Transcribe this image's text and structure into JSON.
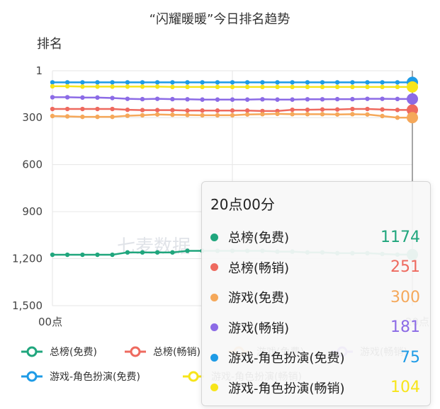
{
  "chart_data": {
    "type": "line",
    "title": "“闪耀暖暖”今日排名趋势",
    "ylabel": "排名",
    "y_reversed": true,
    "ylim": [
      1,
      1500
    ],
    "yticks": [
      1,
      300,
      600,
      900,
      1200,
      1500
    ],
    "ytick_labels": [
      "1",
      "300",
      "600",
      "900",
      "1,200",
      "1,500"
    ],
    "xlim": [
      0,
      20
    ],
    "xtick_labels": [
      "00点",
      "20点"
    ],
    "grid": true,
    "watermark": "七麦数据",
    "x": [
      0,
      0.83,
      1.67,
      2.5,
      3.33,
      4.17,
      5,
      5.83,
      6.67,
      7.5,
      8.33,
      9.17,
      10,
      10.83,
      11.67,
      12.5,
      13.33,
      14.17,
      15,
      15.83,
      16.67,
      17.5,
      18.33,
      19.17,
      20
    ],
    "series": [
      {
        "name": "总榜(免费)",
        "color": "#20a67d",
        "values": [
          1175,
          1175,
          1175,
          1175,
          1175,
          1160,
          1160,
          1160,
          1160,
          1150,
          1150,
          1150,
          1150,
          1150,
          1150,
          1155,
          1155,
          1160,
          1160,
          1165,
          1165,
          1165,
          1170,
          1174,
          1174
        ]
      },
      {
        "name": "总榜(畅销)",
        "color": "#ee6a5f",
        "values": [
          245,
          245,
          245,
          245,
          245,
          250,
          252,
          252,
          252,
          255,
          255,
          255,
          255,
          255,
          258,
          258,
          250,
          250,
          248,
          248,
          245,
          245,
          248,
          251,
          251
        ]
      },
      {
        "name": "游戏(免费)",
        "color": "#f5a85a",
        "values": [
          290,
          292,
          295,
          295,
          295,
          288,
          285,
          280,
          282,
          283,
          285,
          285,
          285,
          280,
          278,
          276,
          278,
          278,
          278,
          280,
          278,
          280,
          290,
          300,
          300
        ]
      },
      {
        "name": "游戏(畅销)",
        "color": "#8c6be6",
        "values": [
          170,
          170,
          172,
          172,
          175,
          180,
          182,
          180,
          182,
          183,
          185,
          185,
          185,
          185,
          183,
          185,
          185,
          183,
          183,
          182,
          182,
          180,
          180,
          181,
          181
        ]
      },
      {
        "name": "游戏-角色扮演(免费)",
        "color": "#1e9be6",
        "values": [
          75,
          75,
          75,
          75,
          75,
          75,
          75,
          75,
          75,
          75,
          75,
          75,
          75,
          75,
          75,
          75,
          75,
          75,
          75,
          75,
          75,
          75,
          75,
          75,
          75
        ]
      },
      {
        "name": "游戏-角色扮演(畅销)",
        "color": "#f7e51a",
        "values": [
          100,
          100,
          102,
          102,
          102,
          102,
          102,
          102,
          104,
          104,
          104,
          104,
          104,
          104,
          104,
          104,
          104,
          104,
          104,
          104,
          104,
          104,
          104,
          104,
          104
        ]
      }
    ],
    "legend": {
      "placement": "bottom",
      "items": [
        "总榜(免费)",
        "总榜(畅销)",
        "游戏(免费)",
        "游戏(畅销)",
        "游戏-角色扮演(免费)",
        "游戏-角色扮演(畅销)"
      ]
    }
  },
  "tooltip": {
    "title": "20点00分",
    "rows": [
      {
        "name": "总榜(免费)",
        "value": "1174",
        "color": "#20a67d"
      },
      {
        "name": "总榜(畅销)",
        "value": "251",
        "color": "#ee6a5f"
      },
      {
        "name": "游戏(免费)",
        "value": "300",
        "color": "#f5a85a"
      },
      {
        "name": "游戏(畅销)",
        "value": "181",
        "color": "#8c6be6"
      },
      {
        "name": "游戏-角色扮演(免费)",
        "value": "75",
        "color": "#1e9be6"
      },
      {
        "name": "游戏-角色扮演(畅销)",
        "value": "104",
        "color": "#f7e51a"
      }
    ]
  }
}
